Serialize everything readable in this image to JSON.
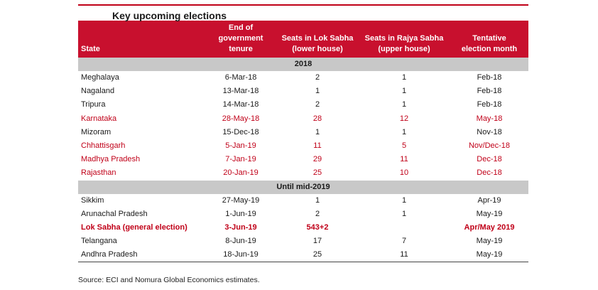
{
  "title": "Key upcoming elections",
  "columns": {
    "state": "State",
    "tenure": [
      "End of",
      "government",
      "tenure"
    ],
    "lok": [
      "Seats in Lok Sabha",
      "(lower house)"
    ],
    "rajya": [
      "Seats in Rajya Sabha",
      "(upper house)"
    ],
    "month": [
      "Tentative",
      "election month"
    ]
  },
  "sections": [
    {
      "label": "2018",
      "rows": [
        {
          "state": "Meghalaya",
          "tenure": "6-Mar-18",
          "lok": "2",
          "rajya": "1",
          "month": "Feb-18",
          "highlight": false,
          "bold": false
        },
        {
          "state": "Nagaland",
          "tenure": "13-Mar-18",
          "lok": "1",
          "rajya": "1",
          "month": "Feb-18",
          "highlight": false,
          "bold": false
        },
        {
          "state": "Tripura",
          "tenure": "14-Mar-18",
          "lok": "2",
          "rajya": "1",
          "month": "Feb-18",
          "highlight": false,
          "bold": false
        },
        {
          "state": "Karnataka",
          "tenure": "28-May-18",
          "lok": "28",
          "rajya": "12",
          "month": "May-18",
          "highlight": true,
          "bold": false
        },
        {
          "state": "Mizoram",
          "tenure": "15-Dec-18",
          "lok": "1",
          "rajya": "1",
          "month": "Nov-18",
          "highlight": false,
          "bold": false
        },
        {
          "state": "Chhattisgarh",
          "tenure": "5-Jan-19",
          "lok": "11",
          "rajya": "5",
          "month": "Nov/Dec-18",
          "highlight": true,
          "bold": false
        },
        {
          "state": "Madhya Pradesh",
          "tenure": "7-Jan-19",
          "lok": "29",
          "rajya": "11",
          "month": "Dec-18",
          "highlight": true,
          "bold": false
        },
        {
          "state": "Rajasthan",
          "tenure": "20-Jan-19",
          "lok": "25",
          "rajya": "10",
          "month": "Dec-18",
          "highlight": true,
          "bold": false
        }
      ]
    },
    {
      "label": "Until mid-2019",
      "rows": [
        {
          "state": "Sikkim",
          "tenure": "27-May-19",
          "lok": "1",
          "rajya": "1",
          "month": "Apr-19",
          "highlight": false,
          "bold": false
        },
        {
          "state": "Arunachal Pradesh",
          "tenure": "1-Jun-19",
          "lok": "2",
          "rajya": "1",
          "month": "May-19",
          "highlight": false,
          "bold": false
        },
        {
          "state": "Lok Sabha (general election)",
          "tenure": "3-Jun-19",
          "lok": "543+2",
          "rajya": "",
          "month": "Apr/May 2019",
          "highlight": true,
          "bold": true
        },
        {
          "state": "Telangana",
          "tenure": "8-Jun-19",
          "lok": "17",
          "rajya": "7",
          "month": "May-19",
          "highlight": false,
          "bold": false
        },
        {
          "state": "Andhra Pradesh",
          "tenure": "18-Jun-19",
          "lok": "25",
          "rajya": "11",
          "month": "May-19",
          "highlight": false,
          "bold": false
        }
      ]
    }
  ],
  "source": "Source: ECI and Nomura Global Economics estimates."
}
